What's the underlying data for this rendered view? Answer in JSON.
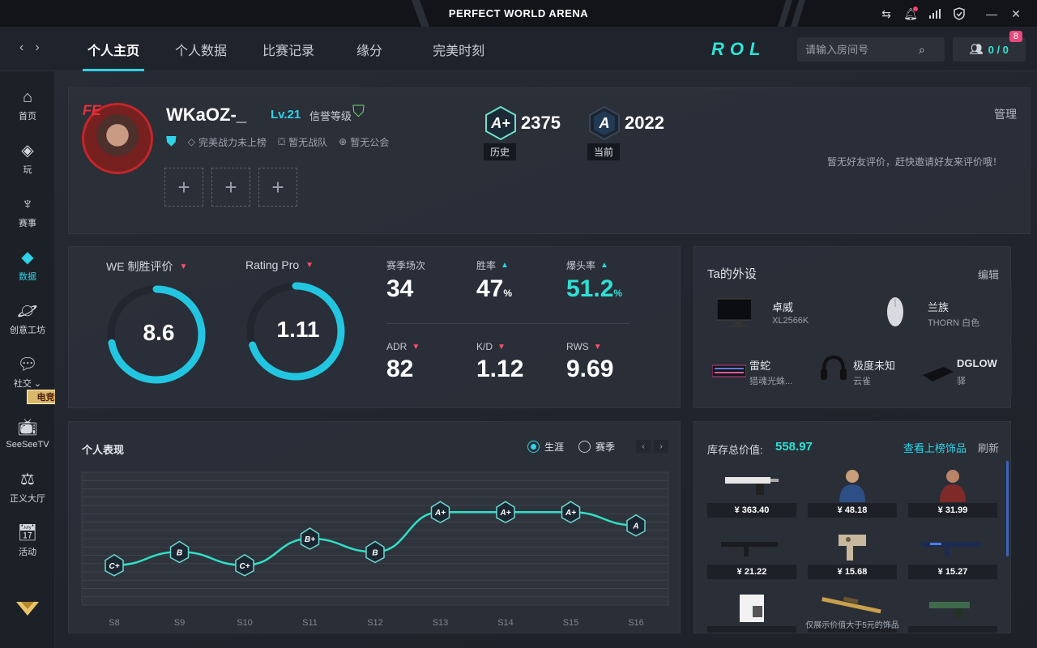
{
  "app": {
    "title": "PERFECT WORLD ARENA"
  },
  "titlebar_icons": [
    "swap-icon",
    "bell-icon",
    "signal-icon",
    "shield-check-icon",
    "minimize-icon",
    "close-icon"
  ],
  "nav": {
    "tabs": [
      "个人主页",
      "个人数据",
      "比赛记录",
      "缘分",
      "完美时刻"
    ],
    "active_tab": "个人主页",
    "logo": "ROL",
    "search_placeholder": "请输入房间号",
    "friends": "0 / 0",
    "friends_badge": "8"
  },
  "sidebar": {
    "items": [
      "首页",
      "玩",
      "赛事",
      "数据",
      "创意工坊",
      "社交 ⌄",
      "SeeSeeTV",
      "正义大厅",
      "活动"
    ],
    "active": "数据",
    "promo_badge": "电竞世界杯"
  },
  "profile": {
    "username": "WKaOZ-_",
    "level": "Lv.21",
    "credit_label": "信誉等级",
    "rank_status": "完美战力未上榜",
    "team_status": "暂无战队",
    "guild_status": "暂无公会",
    "history_rank": "A+",
    "history_score": "2375",
    "history_label": "历史",
    "current_rank": "A",
    "current_score": "2022",
    "current_label": "当前",
    "manage": "管理",
    "friend_eval": "暂无好友评价，赶快邀请好友来评价哦！",
    "avatar_brand": "FE"
  },
  "stats": {
    "we_label": "WE 制胜评价",
    "we_value": "8.6",
    "we_fraction": 0.72,
    "rating_label": "Rating Pro",
    "rating_value": "1.11",
    "rating_fraction": 0.7,
    "season_matches_label": "赛季场次",
    "season_matches": "34",
    "winrate_label": "胜率",
    "winrate": "47",
    "winrate_unit": "%",
    "headshot_label": "爆头率",
    "headshot": "51.2",
    "headshot_unit": "%",
    "adr_label": "ADR",
    "adr": "82",
    "kd_label": "K/D",
    "kd": "1.12",
    "rws_label": "RWS",
    "rws": "9.69"
  },
  "gear": {
    "title": "Ta的外设",
    "edit": "编辑",
    "items": [
      {
        "name": "卓威",
        "sub": "XL2566K"
      },
      {
        "name": "兰族",
        "sub": "THORN 白色"
      },
      {
        "name": "雷蛇",
        "sub": "猎魂光蛛..."
      },
      {
        "name": "极度未知",
        "sub": "云雀"
      },
      {
        "name": "DGLOW",
        "sub": "驿"
      }
    ]
  },
  "performance": {
    "title": "个人表现",
    "mode_career": "生涯",
    "mode_season": "赛季",
    "selected_mode": "生涯"
  },
  "chart_data": {
    "type": "line",
    "title": "个人表现",
    "categories": [
      "S8",
      "S9",
      "S10",
      "S11",
      "S12",
      "S13",
      "S14",
      "S15",
      "S16"
    ],
    "rank_labels": [
      "C+",
      "B",
      "C+",
      "B+",
      "B",
      "A+",
      "A+",
      "A+",
      "A"
    ],
    "values": [
      1.5,
      2,
      1.5,
      2.5,
      2,
      3.5,
      3.5,
      3.5,
      3
    ],
    "ylim": [
      0,
      5
    ],
    "rank_scale": [
      "C",
      "C+",
      "B",
      "B+",
      "A",
      "A+"
    ],
    "grid": true,
    "xlabel": "",
    "ylabel": ""
  },
  "inventory": {
    "title": "库存总价值:",
    "total": "558.97",
    "link": "查看上榜饰品",
    "refresh": "刷新",
    "items": [
      {
        "price": "¥ 363.40",
        "kind": "pistol"
      },
      {
        "price": "¥ 48.18",
        "kind": "agent-blue"
      },
      {
        "price": "¥ 31.99",
        "kind": "agent-red"
      },
      {
        "price": "¥ 21.22",
        "kind": "rifle-dark"
      },
      {
        "price": "¥ 15.68",
        "kind": "smg-camo"
      },
      {
        "price": "¥ 15.27",
        "kind": "rifle-blue"
      },
      {
        "price": "",
        "kind": "sticker"
      },
      {
        "price": "",
        "kind": "sniper-gold"
      },
      {
        "price": "",
        "kind": "pistol-green"
      }
    ],
    "note": "仅展示价值大于5元的饰品"
  },
  "colors": {
    "accent": "#2ed3e6",
    "down": "#ff4d70",
    "bg": "#1a1d24"
  }
}
